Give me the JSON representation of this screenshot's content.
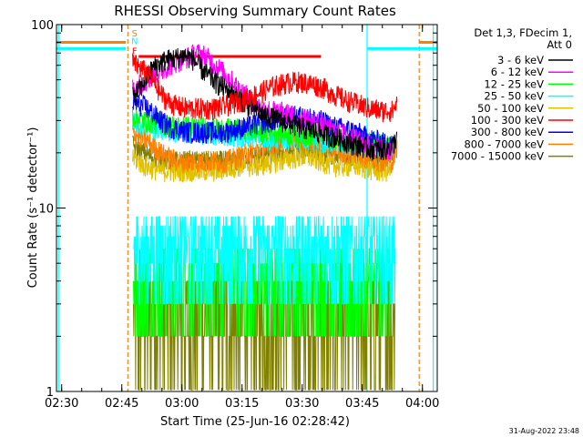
{
  "chart_data": {
    "type": "line",
    "title": "RHESSI Observing Summary Count Rates",
    "xlabel": "Start Time (25-Jun-16 02:28:42)",
    "ylabel": "Count Rate (s⁻¹ detector⁻¹)",
    "yscale": "log",
    "ylim": [
      1,
      100
    ],
    "xlim_minutes": [
      0,
      95
    ],
    "x_ticks": [
      {
        "t": 1.3,
        "label": "02:30"
      },
      {
        "t": 16.3,
        "label": "02:45"
      },
      {
        "t": 31.3,
        "label": "03:00"
      },
      {
        "t": 46.3,
        "label": "03:15"
      },
      {
        "t": 61.3,
        "label": "03:30"
      },
      {
        "t": 76.3,
        "label": "03:45"
      },
      {
        "t": 91.3,
        "label": "04:00"
      }
    ],
    "y_ticks": [
      {
        "v": 1,
        "label": "1"
      },
      {
        "v": 10,
        "label": "10"
      },
      {
        "v": 100,
        "label": "100"
      }
    ],
    "legend_header": [
      "Det 1,3, FDecim 1,",
      "Att 0"
    ],
    "legend_position": "right",
    "series": [
      {
        "name": "3 - 6 keV",
        "color": "#000000",
        "points": [
          [
            19,
            40
          ],
          [
            21,
            45
          ],
          [
            24,
            58
          ],
          [
            27,
            64
          ],
          [
            30,
            66
          ],
          [
            32,
            68
          ],
          [
            34,
            65
          ],
          [
            37,
            55
          ],
          [
            40,
            48
          ],
          [
            44,
            42
          ],
          [
            48,
            36
          ],
          [
            52,
            32
          ],
          [
            56,
            30
          ],
          [
            60,
            28
          ],
          [
            65,
            26
          ],
          [
            70,
            24
          ],
          [
            75,
            22
          ],
          [
            79,
            21
          ],
          [
            82,
            21
          ],
          [
            84,
            22
          ],
          [
            85,
            25
          ]
        ]
      },
      {
        "name": "6 - 12 keV",
        "color": "#ff00ff",
        "points": [
          [
            19,
            45
          ],
          [
            21,
            48
          ],
          [
            24,
            52
          ],
          [
            27,
            58
          ],
          [
            30,
            63
          ],
          [
            33,
            67
          ],
          [
            35,
            70
          ],
          [
            37,
            68
          ],
          [
            39,
            62
          ],
          [
            42,
            54
          ],
          [
            45,
            46
          ],
          [
            48,
            40
          ],
          [
            51,
            35
          ],
          [
            54,
            34
          ],
          [
            57,
            33
          ],
          [
            60,
            31
          ],
          [
            64,
            30
          ],
          [
            68,
            27
          ],
          [
            72,
            25
          ],
          [
            76,
            23
          ],
          [
            79,
            22
          ],
          [
            82,
            21
          ],
          [
            84,
            21
          ]
        ]
      },
      {
        "name": "12 - 25 keV",
        "color": "#00ff00",
        "points": [
          [
            19,
            32
          ],
          [
            22,
            30
          ],
          [
            26,
            29
          ],
          [
            30,
            28
          ],
          [
            35,
            28
          ],
          [
            40,
            27
          ],
          [
            45,
            27
          ],
          [
            50,
            26
          ],
          [
            55,
            26
          ],
          [
            60,
            25
          ],
          [
            65,
            25
          ],
          [
            70,
            24
          ],
          [
            75,
            23
          ],
          [
            80,
            23
          ],
          [
            84,
            22
          ]
        ]
      },
      {
        "name": "25 - 50 keV",
        "color": "#00ffff",
        "points": [
          [
            19,
            30
          ],
          [
            22,
            28
          ],
          [
            26,
            27
          ],
          [
            30,
            26
          ],
          [
            35,
            26
          ],
          [
            40,
            25
          ],
          [
            45,
            25
          ],
          [
            50,
            24
          ],
          [
            55,
            24
          ],
          [
            60,
            24
          ],
          [
            65,
            23
          ],
          [
            70,
            23
          ],
          [
            75,
            22
          ],
          [
            80,
            22
          ],
          [
            84,
            21
          ]
        ]
      },
      {
        "name": "50 - 100 keV",
        "color": "#e0c000",
        "points": [
          [
            19,
            19
          ],
          [
            22,
            17
          ],
          [
            26,
            16
          ],
          [
            30,
            16
          ],
          [
            35,
            16
          ],
          [
            40,
            16
          ],
          [
            45,
            17
          ],
          [
            50,
            17
          ],
          [
            55,
            18
          ],
          [
            60,
            19
          ],
          [
            63,
            19
          ],
          [
            66,
            18
          ],
          [
            70,
            17
          ],
          [
            75,
            17
          ],
          [
            80,
            16
          ],
          [
            84,
            16
          ]
        ]
      },
      {
        "name": "100 - 300 keV",
        "color": "#ff0000",
        "points": [
          [
            19,
            62
          ],
          [
            20,
            60
          ],
          [
            22,
            56
          ],
          [
            24,
            50
          ],
          [
            26,
            42
          ],
          [
            28,
            38
          ],
          [
            30,
            36
          ],
          [
            33,
            35
          ],
          [
            36,
            35
          ],
          [
            39,
            35
          ],
          [
            42,
            36
          ],
          [
            45,
            38
          ],
          [
            48,
            40
          ],
          [
            51,
            43
          ],
          [
            54,
            46
          ],
          [
            57,
            48
          ],
          [
            60,
            49
          ],
          [
            63,
            48
          ],
          [
            66,
            46
          ],
          [
            69,
            42
          ],
          [
            72,
            39
          ],
          [
            75,
            37
          ],
          [
            78,
            35
          ],
          [
            81,
            34
          ],
          [
            84,
            34
          ],
          [
            85,
            38
          ]
        ]
      },
      {
        "name": "300 - 800 keV",
        "color": "#0000ff",
        "points": [
          [
            19,
            38
          ],
          [
            20,
            37
          ],
          [
            22,
            36
          ],
          [
            24,
            33
          ],
          [
            26,
            30
          ],
          [
            28,
            28
          ],
          [
            30,
            27
          ],
          [
            33,
            26
          ],
          [
            36,
            26
          ],
          [
            39,
            26
          ],
          [
            42,
            26
          ],
          [
            45,
            27
          ],
          [
            48,
            28
          ],
          [
            51,
            29
          ],
          [
            54,
            30
          ],
          [
            57,
            31
          ],
          [
            60,
            32
          ],
          [
            63,
            31
          ],
          [
            66,
            30
          ],
          [
            69,
            28
          ],
          [
            72,
            27
          ],
          [
            75,
            26
          ],
          [
            78,
            24
          ],
          [
            81,
            23
          ],
          [
            84,
            22
          ]
        ]
      },
      {
        "name": "800 - 7000 keV",
        "color": "#ff8000",
        "points": [
          [
            19,
            26
          ],
          [
            20,
            25
          ],
          [
            22,
            24
          ],
          [
            24,
            22
          ],
          [
            26,
            20
          ],
          [
            28,
            19
          ],
          [
            30,
            18
          ],
          [
            33,
            18
          ],
          [
            36,
            18
          ],
          [
            39,
            18
          ],
          [
            42,
            18
          ],
          [
            45,
            19
          ],
          [
            48,
            20
          ],
          [
            51,
            21
          ],
          [
            54,
            22
          ],
          [
            57,
            23
          ],
          [
            60,
            24
          ],
          [
            63,
            23
          ],
          [
            66,
            22
          ],
          [
            69,
            21
          ],
          [
            72,
            20
          ],
          [
            75,
            20
          ],
          [
            78,
            19
          ],
          [
            81,
            18
          ],
          [
            84,
            18
          ],
          [
            85,
            22
          ]
        ]
      },
      {
        "name": "7000 - 15000 keV",
        "color": "#808000",
        "points": [
          [
            19,
            22
          ],
          [
            20,
            21
          ],
          [
            22,
            20
          ],
          [
            24,
            19
          ],
          [
            26,
            19
          ],
          [
            28,
            18
          ],
          [
            30,
            18
          ],
          [
            33,
            18
          ],
          [
            36,
            18
          ],
          [
            39,
            18
          ],
          [
            42,
            18
          ],
          [
            45,
            18
          ],
          [
            48,
            19
          ],
          [
            51,
            19
          ],
          [
            54,
            20
          ],
          [
            57,
            20
          ],
          [
            60,
            21
          ],
          [
            63,
            21
          ],
          [
            66,
            20
          ],
          [
            69,
            20
          ],
          [
            72,
            19
          ],
          [
            75,
            19
          ],
          [
            78,
            19
          ],
          [
            81,
            19
          ],
          [
            84,
            19
          ]
        ]
      }
    ],
    "markers": [
      {
        "label": "S",
        "color": "#ff8000"
      },
      {
        "label": "N",
        "color": "#00ffff"
      },
      {
        "label": "F",
        "color": "#ff0000"
      }
    ],
    "footer_date": "31-Aug-2022 23:48"
  }
}
